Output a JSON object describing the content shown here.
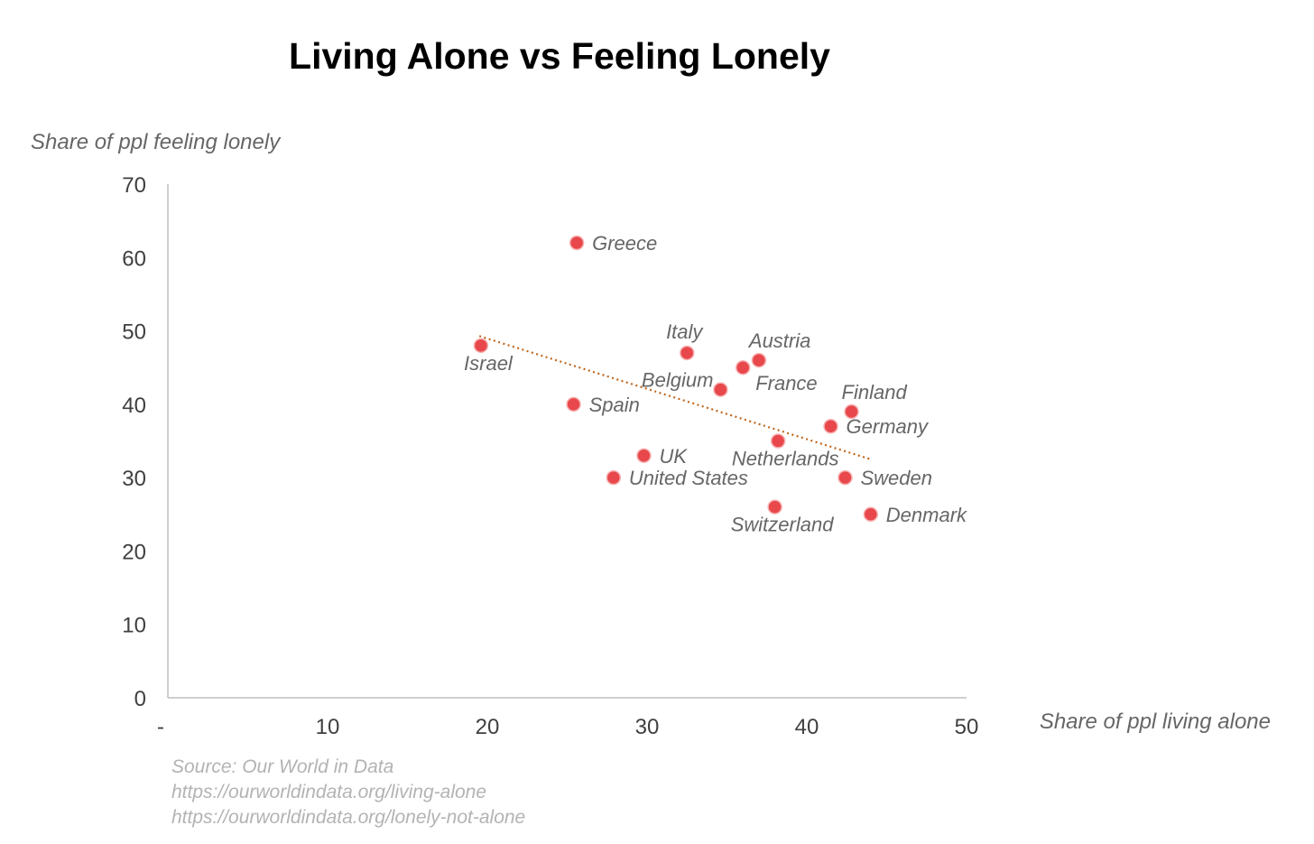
{
  "chart_data": {
    "type": "scatter",
    "title": "Living Alone vs Feeling Lonely",
    "xlabel": "Share of ppl living alone",
    "ylabel": "Share of ppl feeling lonely",
    "xlim": [
      0,
      50
    ],
    "ylim": [
      0,
      70
    ],
    "x_ticks": [
      0,
      10,
      20,
      30,
      40,
      50
    ],
    "x_tick_labels": [
      "-",
      "10",
      "20",
      "30",
      "40",
      "50"
    ],
    "y_ticks": [
      0,
      10,
      20,
      30,
      40,
      50,
      60,
      70
    ],
    "y_tick_labels": [
      "0",
      "10",
      "20",
      "30",
      "40",
      "50",
      "60",
      "70"
    ],
    "grid": false,
    "marker_color": "#e8484b",
    "trendline_color": "#c0661c",
    "trendline": {
      "x": [
        19.5,
        44
      ],
      "y": [
        49.3,
        32.5
      ]
    },
    "points": [
      {
        "label": "Greece",
        "x": 25.6,
        "y": 62.0,
        "label_pos": "right"
      },
      {
        "label": "Italy",
        "x": 32.5,
        "y": 47.0,
        "label_pos": "above"
      },
      {
        "label": "Austria",
        "x": 37.0,
        "y": 46.0,
        "label_pos": "above-right"
      },
      {
        "label": "France",
        "x": 36.0,
        "y": 45.0,
        "label_pos": "below-right"
      },
      {
        "label": "Israel",
        "x": 19.6,
        "y": 48.0,
        "label_pos": "below"
      },
      {
        "label": "Belgium",
        "x": 34.6,
        "y": 42.0,
        "label_pos": "left"
      },
      {
        "label": "Spain",
        "x": 25.4,
        "y": 40.0,
        "label_pos": "right"
      },
      {
        "label": "Finland",
        "x": 42.8,
        "y": 39.0,
        "label_pos": "above-right"
      },
      {
        "label": "Germany",
        "x": 41.5,
        "y": 37.0,
        "label_pos": "right"
      },
      {
        "label": "Netherlands",
        "x": 38.2,
        "y": 35.0,
        "label_pos": "below"
      },
      {
        "label": "UK",
        "x": 29.8,
        "y": 33.0,
        "label_pos": "right"
      },
      {
        "label": "United States",
        "x": 27.9,
        "y": 30.0,
        "label_pos": "right"
      },
      {
        "label": "Sweden",
        "x": 42.4,
        "y": 30.0,
        "label_pos": "right"
      },
      {
        "label": "Switzerland",
        "x": 38.0,
        "y": 26.0,
        "label_pos": "below"
      },
      {
        "label": "Denmark",
        "x": 44.0,
        "y": 25.0,
        "label_pos": "right"
      }
    ]
  },
  "source": {
    "lines": [
      "Source: Our World in Data",
      "https://ourworldindata.org/living-alone",
      "https://ourworldindata.org/lonely-not-alone"
    ]
  }
}
